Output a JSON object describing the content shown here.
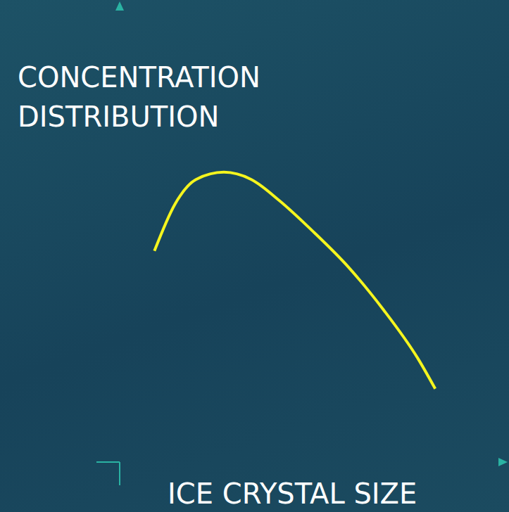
{
  "chart_data": {
    "type": "line",
    "x_label": "ICE CRYSTAL SIZE",
    "y_label": "CONCENTRATION DISTRIBUTION",
    "x": [
      9.1,
      14.5,
      20,
      27.3,
      34.5,
      41.8,
      50.9,
      60,
      69.1,
      78.2,
      82.7
    ],
    "values": [
      46.4,
      56.7,
      62.1,
      63.7,
      62.1,
      57.5,
      50.5,
      42.8,
      33.5,
      22.7,
      16.1
    ],
    "color": "#f5f51e",
    "xlim": [
      0,
      100
    ],
    "ylim": [
      0,
      100
    ],
    "tick_labels": false,
    "grid": false
  }
}
